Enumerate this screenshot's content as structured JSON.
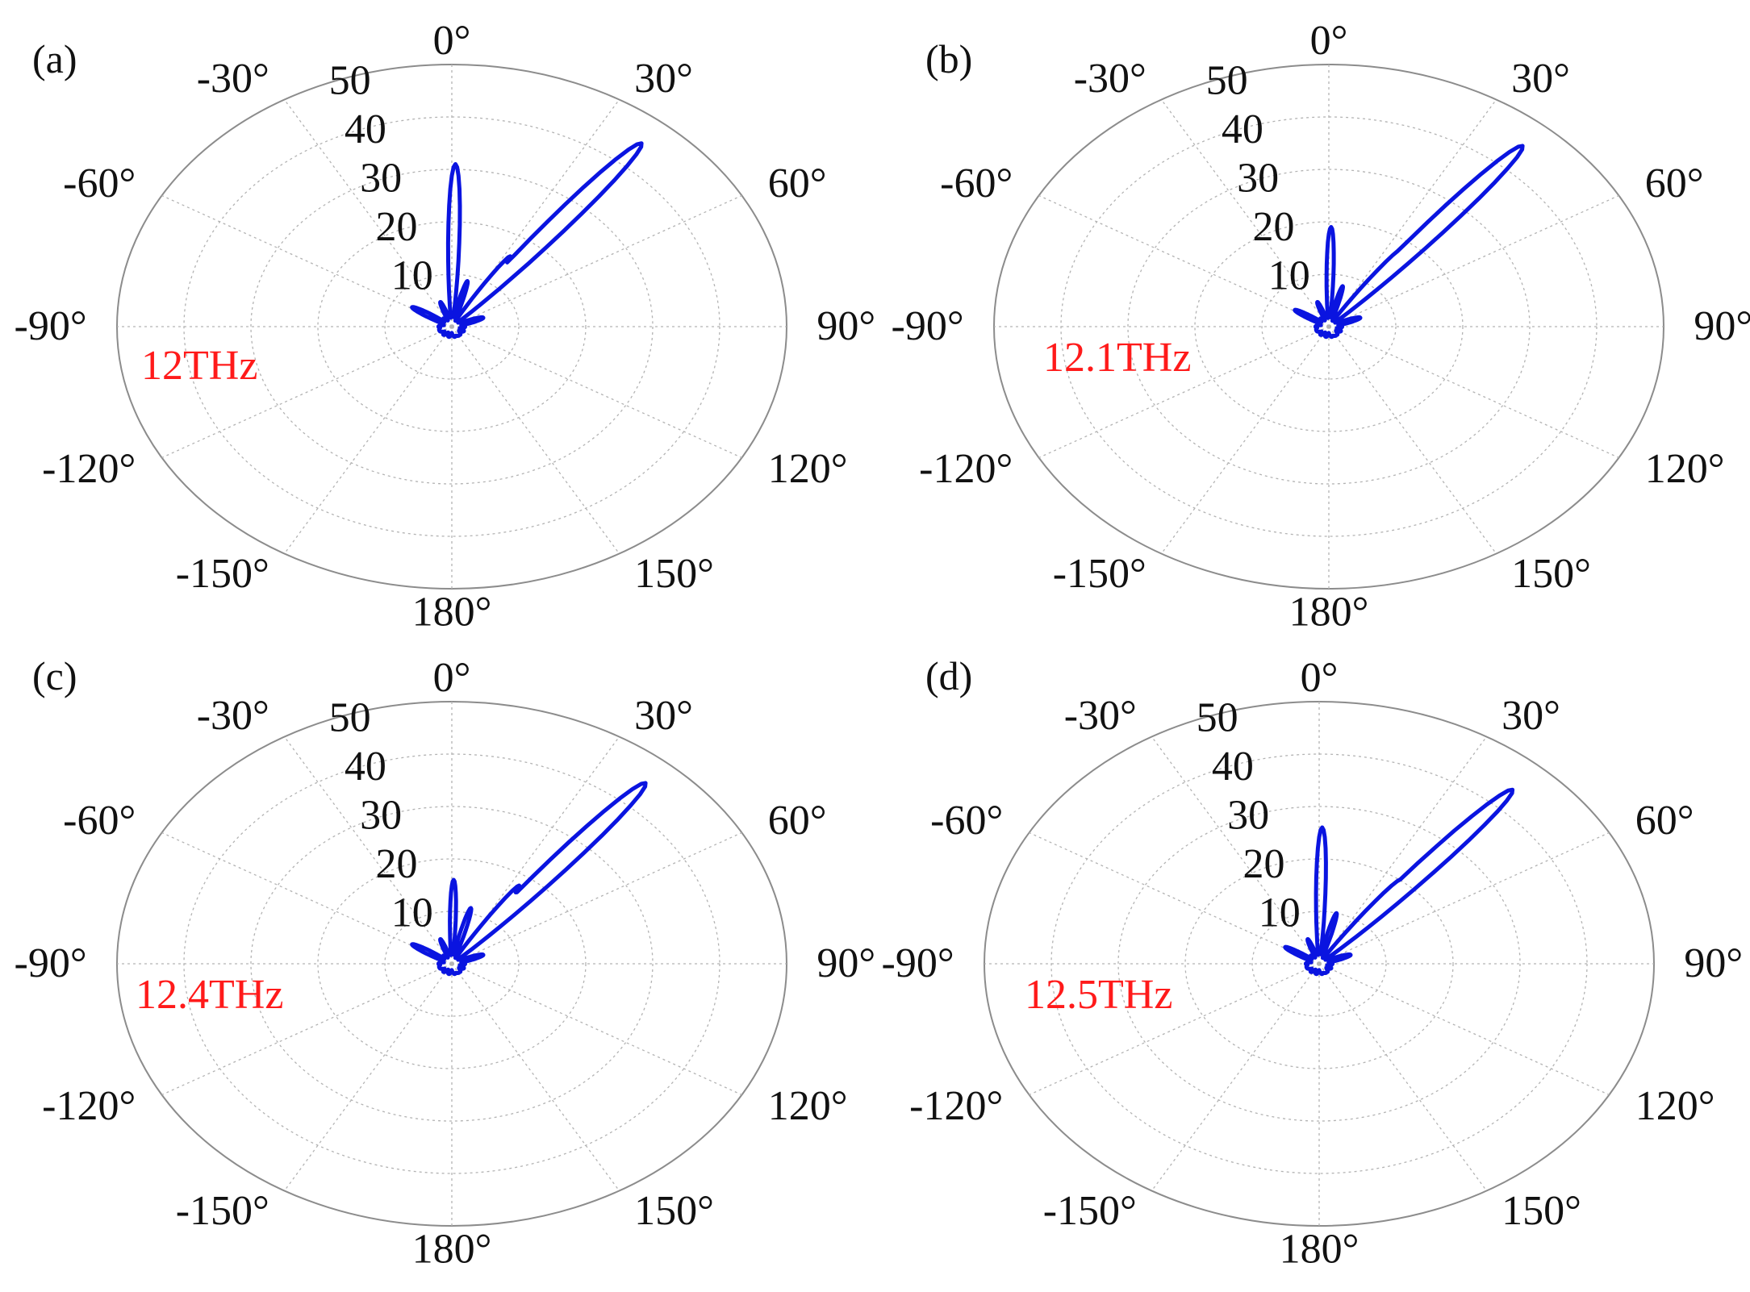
{
  "figure": {
    "angle_tick_labels": [
      "0°",
      "30°",
      "60°",
      "90°",
      "120°",
      "150°",
      "180°",
      "-150°",
      "-120°",
      "-90°",
      "-60°",
      "-30°"
    ],
    "radial_tick_labels": [
      "10",
      "20",
      "30",
      "40",
      "50"
    ],
    "colors": {
      "series": "#0a14e0",
      "frequency_label": "#ff1a1a",
      "grid": "#b3b3b3",
      "outer_ring": "#8c8c8c",
      "text": "#111111"
    }
  },
  "chart_data": [
    {
      "type": "polar",
      "panel_label": "(a)",
      "frequency_label": "12THz",
      "theta_zero_location": "top",
      "theta_direction": "clockwise",
      "rlim": [
        0,
        50
      ],
      "rticks": [
        10,
        20,
        30,
        40,
        50
      ],
      "thetaticks_deg": [
        0,
        30,
        60,
        90,
        120,
        150,
        180,
        -150,
        -120,
        -90,
        -60,
        -30
      ],
      "grid": true,
      "series": [
        {
          "color": "#0a14e0",
          "lobes": [
            {
              "theta_deg": 39,
              "peak": 45,
              "halfwidth_deg": 3.2
            },
            {
              "theta_deg": 1,
              "peak": 31,
              "halfwidth_deg": 2.6
            },
            {
              "theta_deg": 33,
              "peak": 16,
              "halfwidth_deg": 2.5
            },
            {
              "theta_deg": -58,
              "peak": 7,
              "halfwidth_deg": 5
            },
            {
              "theta_deg": 15,
              "peak": 9,
              "halfwidth_deg": 3
            },
            {
              "theta_deg": -20,
              "peak": 5,
              "halfwidth_deg": 4
            },
            {
              "theta_deg": 70,
              "peak": 5,
              "halfwidth_deg": 6
            },
            {
              "theta_deg": -110,
              "peak": 2,
              "halfwidth_deg": 25
            },
            {
              "theta_deg": 150,
              "peak": 2,
              "halfwidth_deg": 25
            }
          ]
        }
      ]
    },
    {
      "type": "polar",
      "panel_label": "(b)",
      "frequency_label": "12.1THz",
      "theta_zero_location": "top",
      "theta_direction": "clockwise",
      "rlim": [
        0,
        50
      ],
      "rticks": [
        10,
        20,
        30,
        40,
        50
      ],
      "thetaticks_deg": [
        0,
        30,
        60,
        90,
        120,
        150,
        180,
        -150,
        -120,
        -90,
        -60,
        -30
      ],
      "grid": true,
      "series": [
        {
          "color": "#0a14e0",
          "lobes": [
            {
              "theta_deg": 40,
              "peak": 45,
              "halfwidth_deg": 3.2
            },
            {
              "theta_deg": 1,
              "peak": 19,
              "halfwidth_deg": 2.6
            },
            {
              "theta_deg": 36,
              "peak": 18,
              "halfwidth_deg": 2.5
            },
            {
              "theta_deg": -58,
              "peak": 6,
              "halfwidth_deg": 5
            },
            {
              "theta_deg": 15,
              "peak": 8,
              "halfwidth_deg": 3
            },
            {
              "theta_deg": -20,
              "peak": 5,
              "halfwidth_deg": 4
            },
            {
              "theta_deg": 70,
              "peak": 5,
              "halfwidth_deg": 6
            },
            {
              "theta_deg": -110,
              "peak": 2,
              "halfwidth_deg": 25
            },
            {
              "theta_deg": 150,
              "peak": 2,
              "halfwidth_deg": 25
            }
          ]
        }
      ]
    },
    {
      "type": "polar",
      "panel_label": "(c)",
      "frequency_label": "12.4THz",
      "theta_zero_location": "top",
      "theta_direction": "clockwise",
      "rlim": [
        0,
        50
      ],
      "rticks": [
        10,
        20,
        30,
        40,
        50
      ],
      "thetaticks_deg": [
        0,
        30,
        60,
        90,
        120,
        150,
        180,
        -150,
        -120,
        -90,
        -60,
        -30
      ],
      "grid": true,
      "series": [
        {
          "color": "#0a14e0",
          "lobes": [
            {
              "theta_deg": 40,
              "peak": 45,
              "halfwidth_deg": 3.2
            },
            {
              "theta_deg": 1,
              "peak": 16,
              "halfwidth_deg": 2.6
            },
            {
              "theta_deg": 34,
              "peak": 18,
              "halfwidth_deg": 2.5
            },
            {
              "theta_deg": -58,
              "peak": 7,
              "halfwidth_deg": 5
            },
            {
              "theta_deg": 15,
              "peak": 11,
              "halfwidth_deg": 3
            },
            {
              "theta_deg": -20,
              "peak": 5,
              "halfwidth_deg": 4
            },
            {
              "theta_deg": 70,
              "peak": 5,
              "halfwidth_deg": 6
            },
            {
              "theta_deg": -110,
              "peak": 2,
              "halfwidth_deg": 25
            },
            {
              "theta_deg": 150,
              "peak": 2,
              "halfwidth_deg": 25
            }
          ]
        }
      ]
    },
    {
      "type": "polar",
      "panel_label": "(d)",
      "frequency_label": "12.5THz",
      "theta_zero_location": "top",
      "theta_direction": "clockwise",
      "rlim": [
        0,
        50
      ],
      "rticks": [
        10,
        20,
        30,
        40,
        50
      ],
      "thetaticks_deg": [
        0,
        30,
        60,
        90,
        120,
        150,
        180,
        -150,
        -120,
        -90,
        -60,
        -30
      ],
      "grid": true,
      "series": [
        {
          "color": "#0a14e0",
          "lobes": [
            {
              "theta_deg": 41,
              "peak": 44,
              "halfwidth_deg": 3.2
            },
            {
              "theta_deg": 1,
              "peak": 26,
              "halfwidth_deg": 2.6
            },
            {
              "theta_deg": 37,
              "peak": 20,
              "halfwidth_deg": 2.5
            },
            {
              "theta_deg": -58,
              "peak": 6,
              "halfwidth_deg": 5
            },
            {
              "theta_deg": 15,
              "peak": 10,
              "halfwidth_deg": 3
            },
            {
              "theta_deg": -20,
              "peak": 5,
              "halfwidth_deg": 4
            },
            {
              "theta_deg": 70,
              "peak": 5,
              "halfwidth_deg": 6
            },
            {
              "theta_deg": -110,
              "peak": 2,
              "halfwidth_deg": 25
            },
            {
              "theta_deg": 150,
              "peak": 2,
              "halfwidth_deg": 25
            }
          ]
        }
      ]
    }
  ]
}
